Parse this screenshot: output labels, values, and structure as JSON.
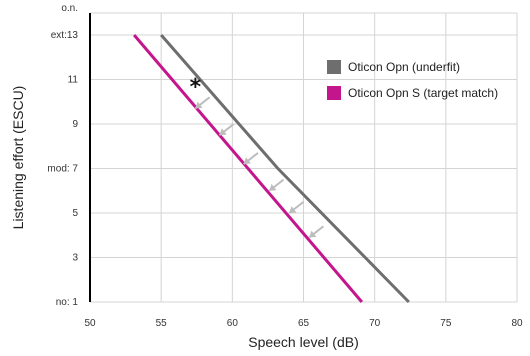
{
  "chart_data": {
    "type": "line",
    "xlabel": "Speech level (dB)",
    "ylabel": "Listening effort (ESCU)",
    "xlim": [
      50,
      80
    ],
    "ylim": [
      1,
      14
    ],
    "grid": true,
    "legend_position": "top-right",
    "x_ticks": [
      {
        "value": 50,
        "label": "50"
      },
      {
        "value": 55,
        "label": "55"
      },
      {
        "value": 60,
        "label": "60"
      },
      {
        "value": 65,
        "label": "65"
      },
      {
        "value": 70,
        "label": "70"
      },
      {
        "value": 75,
        "label": "75"
      },
      {
        "value": 80,
        "label": "80"
      }
    ],
    "y_ticks": [
      {
        "value": 1,
        "label": "no: 1"
      },
      {
        "value": 3,
        "label": "3"
      },
      {
        "value": 5,
        "label": "5"
      },
      {
        "value": 7,
        "label": "mod: 7"
      },
      {
        "value": 9,
        "label": "9"
      },
      {
        "value": 11,
        "label": "11"
      },
      {
        "value": 13,
        "label": "ext:13"
      },
      {
        "value": 14,
        "label": "o.n."
      }
    ],
    "series": [
      {
        "name": "Oticon Opn (underfit)",
        "color": "#6e6e6e",
        "points": [
          [
            55.0,
            13.0
          ],
          [
            63.2,
            7.0
          ],
          [
            72.4,
            1.0
          ]
        ]
      },
      {
        "name": "Oticon Opn S (target match)",
        "color": "#c4168c",
        "points": [
          [
            53.1,
            13.0
          ],
          [
            69.1,
            1.0
          ]
        ]
      }
    ],
    "annotations": [
      {
        "type": "asterisk",
        "text": "*",
        "x": 57.4,
        "y": 10.8
      }
    ],
    "arrows": [
      {
        "from": [
          58.4,
          10.2
        ],
        "to": [
          57.4,
          9.7
        ]
      },
      {
        "from": [
          60.1,
          9.0
        ],
        "to": [
          59.1,
          8.5
        ]
      },
      {
        "from": [
          61.8,
          7.7
        ],
        "to": [
          60.8,
          7.2
        ]
      },
      {
        "from": [
          63.6,
          6.5
        ],
        "to": [
          62.6,
          6.0
        ]
      },
      {
        "from": [
          65.0,
          5.5
        ],
        "to": [
          64.0,
          5.0
        ]
      },
      {
        "from": [
          66.4,
          4.4
        ],
        "to": [
          65.4,
          3.9
        ]
      }
    ]
  }
}
